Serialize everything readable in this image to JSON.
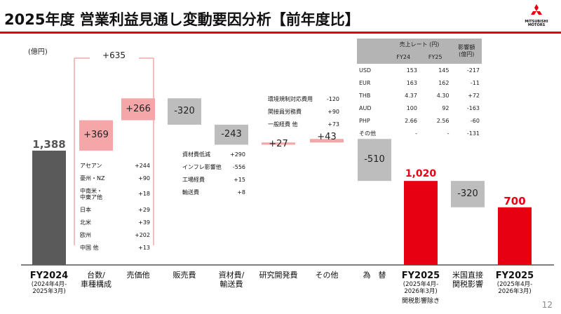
{
  "header": {
    "title": "2025年度 営業利益見通し変動要因分析【前年度比】",
    "logo_text": "MITSUBISHI\nMOTORS",
    "brand_color": "#e60012"
  },
  "unit_label": "(億円)",
  "page_number": "12",
  "chart_data": {
    "type": "bar",
    "subtype": "waterfall",
    "title": "",
    "ylabel": "(億円)",
    "categories": [
      {
        "key": "fy2024",
        "label": "FY2024",
        "sub": "2024年4月-\n2025年3月",
        "value": 1388,
        "kind": "total",
        "display": "1,388"
      },
      {
        "key": "volume",
        "label": "台数/\n車種構成",
        "value": 369,
        "kind": "up",
        "display": "+369"
      },
      {
        "key": "price",
        "label": "売価他",
        "value": 266,
        "kind": "up",
        "display": "+266"
      },
      {
        "key": "selling",
        "label": "販売費",
        "value": -320,
        "kind": "down",
        "display": "-320"
      },
      {
        "key": "material",
        "label": "資材費/\n輸送費",
        "value": -243,
        "kind": "down",
        "display": "-243"
      },
      {
        "key": "rnd",
        "label": "研究開発費",
        "value": 27,
        "kind": "up",
        "display": "+27"
      },
      {
        "key": "other",
        "label": "その他",
        "value": 43,
        "kind": "up",
        "display": "+43"
      },
      {
        "key": "fx",
        "label": "為　替",
        "value": -510,
        "kind": "down",
        "display": "-510"
      },
      {
        "key": "fy2025ex",
        "label": "FY2025",
        "sub": "2025年4月-\n2026年3月",
        "note": "関税影響除き",
        "value": 1020,
        "kind": "total-red",
        "display": "1,020"
      },
      {
        "key": "tariff",
        "label": "米国直接\n関税影響",
        "value": -320,
        "kind": "down",
        "display": "-320"
      },
      {
        "key": "fy2025",
        "label": "FY2025",
        "sub": "2025年4月-\n2026年3月",
        "value": 700,
        "kind": "total-red",
        "display": "700"
      }
    ],
    "bracket_total": "+635",
    "colors": {
      "total": "#5a5a5a",
      "total_red": "#e60012",
      "up": "#f4a6a8",
      "down": "#bdbdbd",
      "bracket": "#f4a6a8"
    },
    "breakdowns": {
      "volume": [
        {
          "label": "アセアン",
          "value": "+244"
        },
        {
          "label": "豪州・NZ",
          "value": "+90"
        },
        {
          "label": "中南米・\n中東ア他",
          "value": "+18"
        },
        {
          "label": "日本",
          "value": "+29"
        },
        {
          "label": "北米",
          "value": "+39"
        },
        {
          "label": "欧州",
          "value": "+202"
        },
        {
          "label": "中国 他",
          "value": "+13"
        }
      ],
      "material": [
        {
          "label": "資材費低減",
          "value": "+290"
        },
        {
          "label": "インフレ影響他",
          "value": "-556"
        },
        {
          "label": "工場経費",
          "value": "+15"
        },
        {
          "label": "輸送費",
          "value": "+8"
        }
      ],
      "rnd_other": [
        {
          "label": "環境規制対応費用",
          "value": "-120"
        },
        {
          "label": "関接員労務費",
          "value": "+90"
        },
        {
          "label": "一般経費 他",
          "value": "+73"
        }
      ]
    },
    "fx_table": {
      "header_rate": "売上レート (円)",
      "header_fy24": "FY24",
      "header_fy25": "FY25",
      "header_impact": "影響額\n(億円)",
      "rows": [
        {
          "cur": "USD",
          "fy24": "153",
          "fy25": "145",
          "impact": "-217"
        },
        {
          "cur": "EUR",
          "fy24": "163",
          "fy25": "162",
          "impact": "-11"
        },
        {
          "cur": "THB",
          "fy24": "4.37",
          "fy25": "4.30",
          "impact": "+72"
        },
        {
          "cur": "AUD",
          "fy24": "100",
          "fy25": "92",
          "impact": "-163"
        },
        {
          "cur": "PHP",
          "fy24": "2.66",
          "fy25": "2.56",
          "impact": "-60"
        },
        {
          "cur": "その他",
          "fy24": "-",
          "fy25": "-",
          "impact": "-131"
        }
      ]
    }
  }
}
